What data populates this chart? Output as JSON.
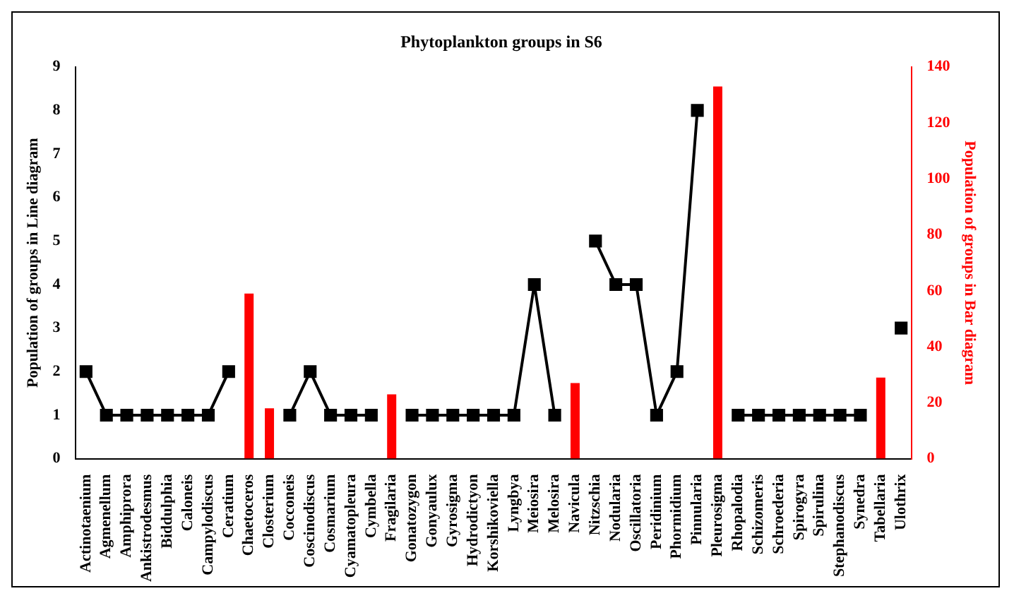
{
  "chart_data": {
    "type": "line",
    "title": "Phytoplankton groups in S6",
    "ylabel": "Population of groups in Line diagram",
    "y2label": "Population of groups in Bar diagram",
    "categories": [
      "Actinotaenium",
      "Agmenellum",
      "Amphiprora",
      "Ankistrodesmus",
      "Biddulphia",
      "Caloneis",
      "Campylodiscus",
      "Ceratium",
      "Chaetoceros",
      "Closterium",
      "Cocconeis",
      "Coscinodiscus",
      "Cosmarium",
      "Cyamatopleura",
      "Cymbella",
      "Fragilaria",
      "Gonatozygon",
      "Gonyaulux",
      "Gyrosigma",
      "Hydrodictyon",
      "Korshikoviella",
      "Lyngbya",
      "Meiosira",
      "Melosira",
      "Navicula",
      "Nitzschia",
      "Nodularia",
      "Oscillatoria",
      "Peridinium",
      "Phormidium",
      "Pinnularia",
      "Pleurosigma",
      "Rhopalodia",
      "Schizomeris",
      "Schroederia",
      "Spirogyra",
      "Spirulina",
      "Stephanodiscus",
      "Synedra",
      "Tabellaria",
      "Ulothrix"
    ],
    "series": [
      {
        "color": "#000000",
        "values": [
          2,
          1,
          1,
          1,
          1,
          1,
          1,
          2,
          null,
          null,
          1,
          2,
          1,
          1,
          1,
          null,
          1,
          1,
          1,
          1,
          1,
          1,
          4,
          1,
          null,
          5,
          4,
          4,
          1,
          2,
          8,
          null,
          1,
          1,
          1,
          1,
          1,
          1,
          1,
          null,
          3
        ]
      },
      {
        "type": "bar",
        "axis": "y2",
        "color": "#ff0000",
        "values": [
          null,
          null,
          null,
          null,
          null,
          null,
          null,
          null,
          59,
          18,
          null,
          null,
          null,
          null,
          null,
          23,
          null,
          null,
          null,
          null,
          null,
          null,
          null,
          null,
          27,
          null,
          null,
          null,
          null,
          null,
          null,
          133,
          null,
          null,
          null,
          null,
          null,
          null,
          null,
          29,
          null
        ]
      }
    ],
    "ylim": [
      0,
      9
    ],
    "yticks": [
      0,
      1,
      2,
      3,
      4,
      5,
      6,
      7,
      8,
      9
    ],
    "y2lim": [
      0,
      140
    ],
    "y2ticks": [
      0,
      20,
      40,
      60,
      80,
      100,
      120,
      140
    ],
    "marker": "square",
    "line_style": "solid",
    "grid": false,
    "legend": false
  }
}
